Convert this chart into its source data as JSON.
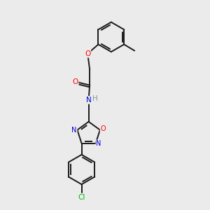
{
  "background_color": "#ebebeb",
  "bond_color": "#1a1a1a",
  "atom_colors": {
    "O": "#ff0000",
    "N": "#0000cc",
    "Cl": "#00bb00",
    "H": "#7a9aaa",
    "C": "#1a1a1a"
  },
  "figsize": [
    3.0,
    3.0
  ],
  "dpi": 100
}
